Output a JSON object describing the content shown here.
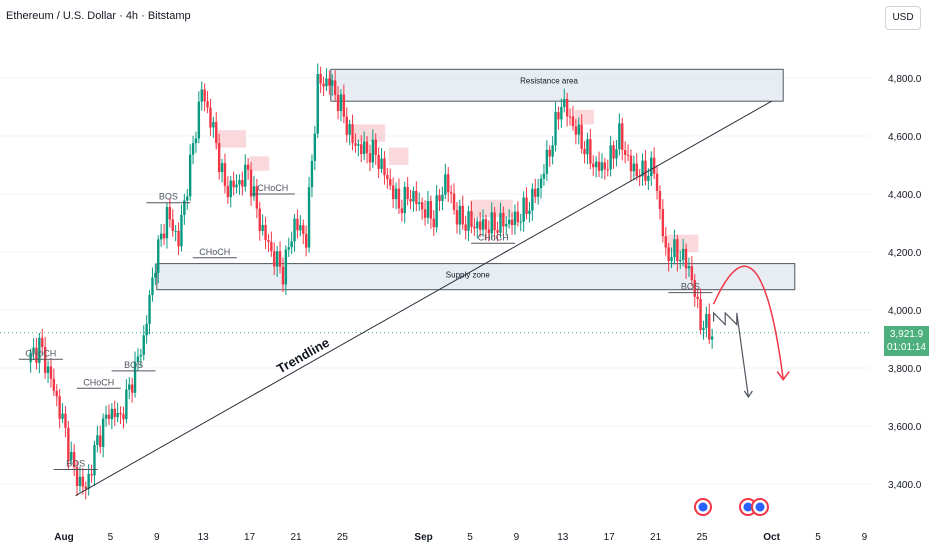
{
  "header": {
    "title": "Ethereum / U.S. Dollar · 4h · Bitstamp",
    "currency_button": "USD"
  },
  "price_badge": {
    "price": "3,921.9",
    "countdown": "01:01:14"
  },
  "colors": {
    "up": "#089981",
    "down": "#f23645",
    "zone_fill": "#d6deea",
    "zone_border": "#50555f",
    "badge": "#4caf7c",
    "line": "#2a2e39"
  },
  "chart_data": {
    "type": "candlestick",
    "title": "Ethereum / U.S. Dollar · 4h · Bitstamp",
    "y_ticks": [
      "4,800.0",
      "4,600.0",
      "4,400.0",
      "4,200.0",
      "4,000.0",
      "3,800.0",
      "3,600.0",
      "3,400.0"
    ],
    "x_ticks": [
      "Aug",
      "5",
      "9",
      "13",
      "17",
      "21",
      "25",
      "Sep",
      "5",
      "9",
      "13",
      "17",
      "21",
      "25",
      "Oct",
      "5",
      "9"
    ],
    "ylim": [
      3290,
      4960
    ],
    "current_price": 3921.9,
    "price_path": [
      {
        "date": "Jul 29",
        "price": 3820
      },
      {
        "date": "Jul 30",
        "price": 3880
      },
      {
        "date": "Jul 31",
        "price": 3760
      },
      {
        "date": "Aug 1",
        "price": 3620
      },
      {
        "date": "Aug 2",
        "price": 3440
      },
      {
        "date": "Aug 3",
        "price": 3380
      },
      {
        "date": "Aug 4",
        "price": 3550
      },
      {
        "date": "Aug 5",
        "price": 3650
      },
      {
        "date": "Aug 6",
        "price": 3630
      },
      {
        "date": "Aug 7",
        "price": 3760
      },
      {
        "date": "Aug 8",
        "price": 3900
      },
      {
        "date": "Aug 9",
        "price": 4170
      },
      {
        "date": "Aug 10",
        "price": 4330
      },
      {
        "date": "Aug 11",
        "price": 4240
      },
      {
        "date": "Aug 12",
        "price": 4500
      },
      {
        "date": "Aug 13",
        "price": 4760
      },
      {
        "date": "Aug 14",
        "price": 4620
      },
      {
        "date": "Aug 15",
        "price": 4420
      },
      {
        "date": "Aug 16",
        "price": 4430
      },
      {
        "date": "Aug 17",
        "price": 4480
      },
      {
        "date": "Aug 18",
        "price": 4300
      },
      {
        "date": "Aug 19",
        "price": 4200
      },
      {
        "date": "Aug 20",
        "price": 4130
      },
      {
        "date": "Aug 21",
        "price": 4300
      },
      {
        "date": "Aug 22",
        "price": 4250
      },
      {
        "date": "Aug 23",
        "price": 4780
      },
      {
        "date": "Aug 24",
        "price": 4790
      },
      {
        "date": "Aug 25",
        "price": 4700
      },
      {
        "date": "Aug 26",
        "price": 4580
      },
      {
        "date": "Aug 27",
        "price": 4550
      },
      {
        "date": "Aug 28",
        "price": 4540
      },
      {
        "date": "Aug 29",
        "price": 4450
      },
      {
        "date": "Aug 30",
        "price": 4360
      },
      {
        "date": "Aug 31",
        "price": 4400
      },
      {
        "date": "Sep 1",
        "price": 4350
      },
      {
        "date": "Sep 2",
        "price": 4320
      },
      {
        "date": "Sep 3",
        "price": 4450
      },
      {
        "date": "Sep 4",
        "price": 4320
      },
      {
        "date": "Sep 5",
        "price": 4300
      },
      {
        "date": "Sep 6",
        "price": 4290
      },
      {
        "date": "Sep 7",
        "price": 4290
      },
      {
        "date": "Sep 8",
        "price": 4300
      },
      {
        "date": "Sep 9",
        "price": 4310
      },
      {
        "date": "Sep 10",
        "price": 4350
      },
      {
        "date": "Sep 11",
        "price": 4420
      },
      {
        "date": "Sep 12",
        "price": 4550
      },
      {
        "date": "Sep 13",
        "price": 4720
      },
      {
        "date": "Sep 14",
        "price": 4640
      },
      {
        "date": "Sep 15",
        "price": 4560
      },
      {
        "date": "Sep 16",
        "price": 4490
      },
      {
        "date": "Sep 17",
        "price": 4500
      },
      {
        "date": "Sep 18",
        "price": 4600
      },
      {
        "date": "Sep 19",
        "price": 4490
      },
      {
        "date": "Sep 20",
        "price": 4470
      },
      {
        "date": "Sep 21",
        "price": 4490
      },
      {
        "date": "Sep 22",
        "price": 4190
      },
      {
        "date": "Sep 23",
        "price": 4200
      },
      {
        "date": "Sep 24",
        "price": 4150
      },
      {
        "date": "Sep 25",
        "price": 3960
      },
      {
        "date": "Sep 26",
        "price": 3920
      }
    ],
    "zones": [
      {
        "name": "Resistance area",
        "from": "Aug 24",
        "to": "Oct 2",
        "top": 4830,
        "bottom": 4720
      },
      {
        "name": "Supply zone",
        "from": "Aug 9",
        "to": "Oct 3",
        "top": 4160,
        "bottom": 4070
      }
    ],
    "trendline": {
      "label": "Trendline",
      "from": {
        "date": "Aug 2",
        "price": 3360
      },
      "to": {
        "date": "Oct 1",
        "price": 4720
      }
    },
    "annotations": [
      {
        "text": "CHoCH",
        "date": "Jul 30",
        "price": 3830
      },
      {
        "text": "BOS",
        "date": "Aug 2",
        "price": 3450
      },
      {
        "text": "CHoCH",
        "date": "Aug 4",
        "price": 3730
      },
      {
        "text": "BOS",
        "date": "Aug 7",
        "price": 3790
      },
      {
        "text": "BOS",
        "date": "Aug 10",
        "price": 4370
      },
      {
        "text": "CHoCH",
        "date": "Aug 14",
        "price": 4180
      },
      {
        "text": "CHoCH",
        "date": "Aug 19",
        "price": 4400
      },
      {
        "text": "CHoCH",
        "date": "Sep 7",
        "price": 4230
      },
      {
        "text": "BOS",
        "date": "Sep 24",
        "price": 4060
      }
    ],
    "red_boxes": [
      {
        "from": "Aug 14",
        "to": "Aug 16",
        "top": 4620,
        "bottom": 4560
      },
      {
        "from": "Aug 17",
        "to": "Aug 18",
        "top": 4530,
        "bottom": 4480
      },
      {
        "from": "Aug 26",
        "to": "Aug 28",
        "top": 4640,
        "bottom": 4580
      },
      {
        "from": "Aug 29",
        "to": "Aug 30",
        "top": 4560,
        "bottom": 4500
      },
      {
        "from": "Sep 5",
        "to": "Sep 8",
        "top": 4380,
        "bottom": 4320
      },
      {
        "from": "Sep 14",
        "to": "Sep 15",
        "top": 4690,
        "bottom": 4640
      },
      {
        "from": "Sep 22",
        "to": "Sep 24",
        "top": 4260,
        "bottom": 4200
      }
    ],
    "projections": [
      {
        "style": "zigzag",
        "color": "#50555f",
        "points": [
          {
            "date": "Sep 26",
            "price": 3960
          },
          {
            "date": "Sep 26",
            "price": 3990
          },
          {
            "date": "Sep 27",
            "price": 3950
          },
          {
            "date": "Sep 27",
            "price": 3990
          },
          {
            "date": "Sep 28",
            "price": 3950
          },
          {
            "date": "Sep 28",
            "price": 3990
          },
          {
            "date": "Sep 29",
            "price": 3700
          }
        ]
      },
      {
        "style": "curve",
        "color": "#f23645",
        "points": [
          {
            "date": "Sep 26",
            "price": 4020
          },
          {
            "date": "Sep 30",
            "price": 4170
          },
          {
            "date": "Oct 2",
            "price": 3760
          }
        ]
      }
    ]
  }
}
